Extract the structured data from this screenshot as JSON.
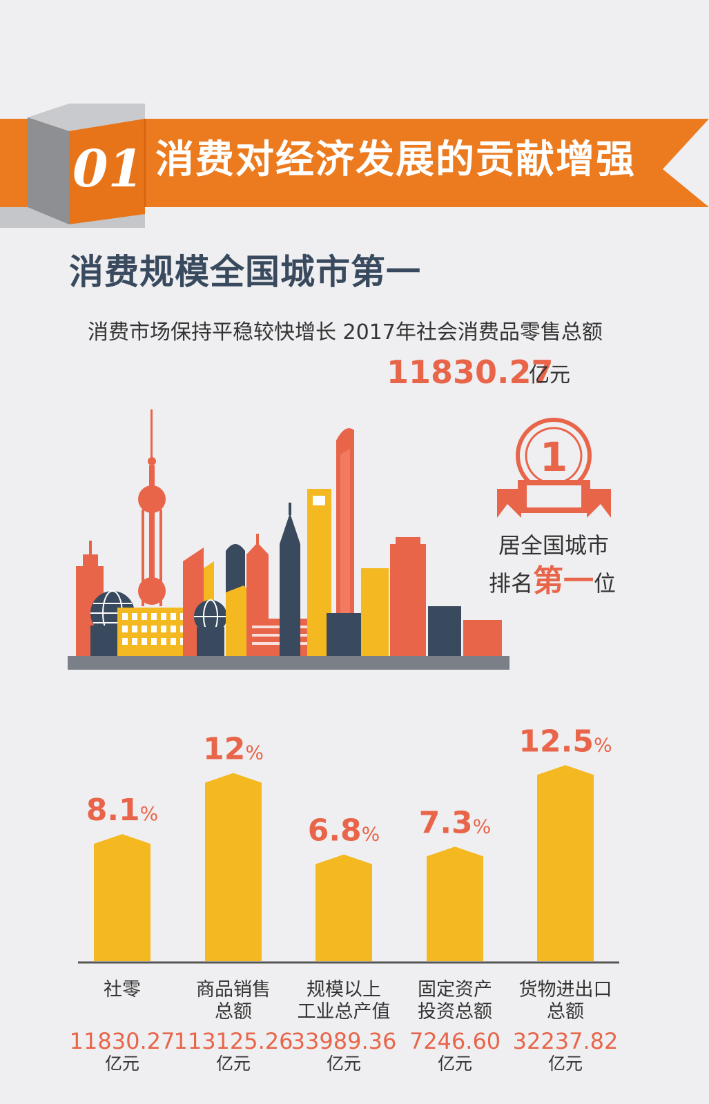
{
  "header": {
    "section_no": "01",
    "title": "消费对经济发展的贡献增强"
  },
  "subtitle": "消费规模全国城市第一",
  "intro": "消费市场保持平稳较快增长 2017年社会消费品零售总额",
  "total": {
    "value": "11830.27",
    "unit": "亿元"
  },
  "award": {
    "rank_digit": "1",
    "line1": "居全国城市",
    "line2_prefix": "排名",
    "line2_strong": "第一",
    "line2_suffix": "位"
  },
  "colors": {
    "orange": "#ec7a1e",
    "coral": "#e8654a",
    "yellow": "#f4b820",
    "navy": "#3a4a5e"
  },
  "chart_data": {
    "type": "bar",
    "categories": [
      "社零",
      "商品销售总额",
      "规模以上工业总产值",
      "固定资产投资总额",
      "货物进出口总额"
    ],
    "values": [
      8.1,
      12,
      6.8,
      7.3,
      12.5
    ],
    "value_labels": [
      "8.1",
      "12",
      "6.8",
      "7.3",
      "12.5"
    ],
    "value_unit": "%",
    "category_lines": [
      [
        "社零"
      ],
      [
        "商品销售",
        "总额"
      ],
      [
        "规模以上",
        "工业总产值"
      ],
      [
        "固定资产",
        "投资总额"
      ],
      [
        "货物进出口",
        "总额"
      ]
    ],
    "amounts": [
      "11830.27",
      "113125.26",
      "33989.36",
      "7246.60",
      "32237.82"
    ],
    "amount_unit": "亿元"
  }
}
